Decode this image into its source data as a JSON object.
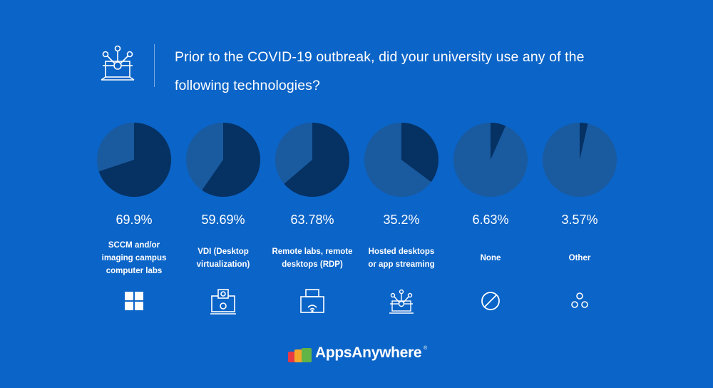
{
  "header": {
    "title": "Prior to the COVID-19 outbreak, did your university use any of the following technologies?",
    "icon": "network-laptop-icon"
  },
  "colors": {
    "background": "#0b64c7",
    "pie_light": "#1a5a9f",
    "pie_dark": "#053163",
    "text": "#ffffff"
  },
  "chart_data": {
    "type": "pie",
    "title": "Prior to the COVID-19 outbreak, did your university use any of the following technologies?",
    "series": [
      {
        "name": "SCCM and/or imaging campus computer labs",
        "label_lines": [
          "SCCM and/or",
          "imaging campus",
          "computer labs"
        ],
        "value": 69.9,
        "value_label": "69.9%",
        "icon": "windows-icon"
      },
      {
        "name": "VDI (Desktop virtualization)",
        "label_lines": [
          "VDI (Desktop",
          "virtualization)"
        ],
        "value": 59.69,
        "value_label": "59.69%",
        "icon": "webcam-monitor-icon"
      },
      {
        "name": "Remote labs, remote desktops (RDP)",
        "label_lines": [
          "Remote labs, remote",
          "desktops (RDP)"
        ],
        "value": 63.78,
        "value_label": "63.78%",
        "icon": "printer-wifi-icon"
      },
      {
        "name": "Hosted desktops or app streaming",
        "label_lines": [
          "Hosted desktops",
          "or app streaming"
        ],
        "value": 35.2,
        "value_label": "35.2%",
        "icon": "network-laptop-icon"
      },
      {
        "name": "None",
        "label_lines": [
          "None"
        ],
        "value": 6.63,
        "value_label": "6.63%",
        "icon": "prohibited-icon"
      },
      {
        "name": "Other",
        "label_lines": [
          "Other"
        ],
        "value": 3.57,
        "value_label": "3.57%",
        "icon": "three-circles-icon"
      }
    ]
  },
  "logo": {
    "text": "AppsAnywhere",
    "mark": "registered-mark",
    "mark_text": "®"
  }
}
